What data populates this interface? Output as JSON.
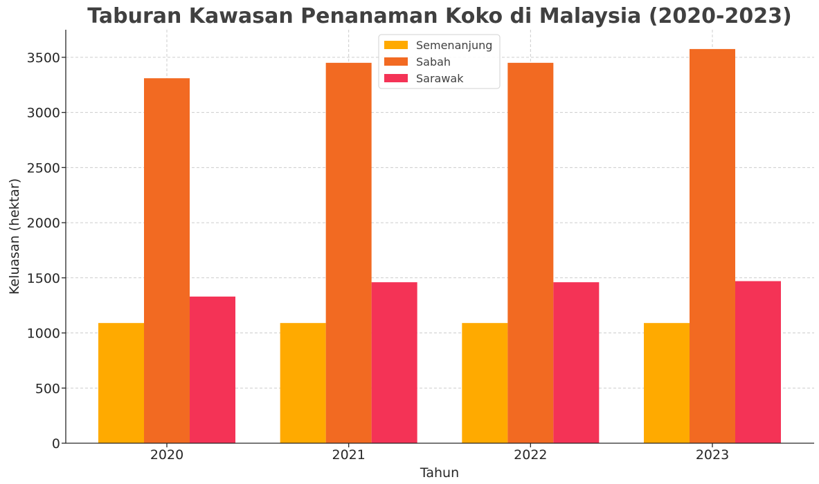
{
  "chart_data": {
    "type": "bar",
    "title": "Taburan Kawasan Penanaman Koko di Malaysia (2020-2023)",
    "xlabel": "Tahun",
    "ylabel": "Keluasan (hektar)",
    "categories": [
      "2020",
      "2021",
      "2022",
      "2023"
    ],
    "series": [
      {
        "name": "Semenanjung",
        "color": "#FFAA00",
        "values": [
          1090,
          1090,
          1090,
          1090
        ]
      },
      {
        "name": "Sabah",
        "color": "#F26A22",
        "values": [
          3310,
          3450,
          3450,
          3575
        ]
      },
      {
        "name": "Sarawak",
        "color": "#F43356",
        "values": [
          1330,
          1460,
          1460,
          1470
        ]
      }
    ],
    "ylim": [
      0,
      3750
    ],
    "yticks": [
      0,
      500,
      1000,
      1500,
      2000,
      2500,
      3000,
      3500
    ],
    "grid": true,
    "legend_position": "top-center"
  }
}
